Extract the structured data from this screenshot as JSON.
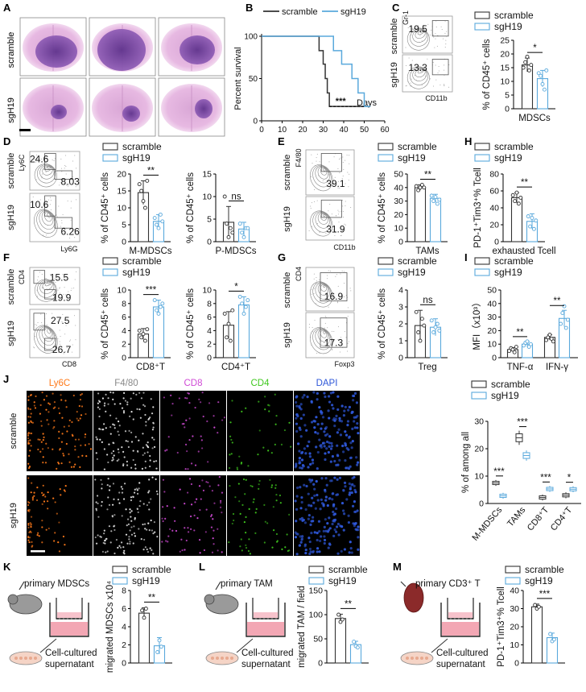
{
  "colors": {
    "scramble": "#333333",
    "sgH19": "#5aa9dc",
    "ly6c": "#ff7a1a",
    "f480": "#e8e8e8",
    "cd8": "#d04ad6",
    "cd4": "#3fc81e",
    "dapi": "#2e57d8"
  },
  "groups": [
    "scramble",
    "sgH19"
  ],
  "panels": {
    "A": {
      "letter": "A",
      "rows": [
        "scramble",
        "sgH19"
      ]
    },
    "B": {
      "letter": "B",
      "ylabel": "Percent survival",
      "xlabel": "Days",
      "sig": "***",
      "yticks": [
        "100",
        "50",
        "0"
      ],
      "xticks": [
        "0",
        "10",
        "20",
        "30",
        "40",
        "50",
        "60"
      ]
    },
    "C": {
      "letter": "C",
      "flow_y": "Gr-1",
      "flow_x": "CD11b",
      "gate_values": [
        "19.5",
        "13.3"
      ],
      "ylabel": "% of CD45⁺ cells",
      "xlabel": "MDSCs",
      "sig": "*",
      "yticks": [
        "0",
        "5",
        "10",
        "15",
        "20",
        "25"
      ]
    },
    "D": {
      "letter": "D",
      "flow_y": "Ly6C",
      "flow_x": "Ly6G",
      "gate_values": [
        "24.6",
        "8.03",
        "10.6",
        "6.26"
      ],
      "ylabel": "% of CD45⁺ cells",
      "plot1_x": "M-MDSCs",
      "plot2_x": "P-MDSCs",
      "sig1": "**",
      "sig2": "ns",
      "yticks1": [
        "0",
        "5",
        "10",
        "15",
        "20"
      ],
      "yticks2": [
        "0",
        "5",
        "10",
        "15"
      ]
    },
    "E": {
      "letter": "E",
      "flow_y": "F4/80",
      "flow_x": "CD11b",
      "gate_values": [
        "39.1",
        "31.9"
      ],
      "ylabel": "% of CD45⁺ cells",
      "xlabel": "TAMs",
      "sig": "**",
      "yticks": [
        "0",
        "10",
        "20",
        "30",
        "40",
        "50"
      ]
    },
    "H": {
      "letter": "H",
      "ylabel": "PD-1⁺Tim3⁺% Tcell",
      "xlabel": "exhausted Tcell",
      "sig": "**",
      "yticks": [
        "0",
        "20",
        "40",
        "60",
        "80"
      ]
    },
    "F": {
      "letter": "F",
      "flow_y": "CD4",
      "flow_x": "CD8",
      "gate_values": [
        "15.5",
        "19.9",
        "27.5",
        "26.7"
      ],
      "ylabel": "% of CD45⁺ cells",
      "plot1_x": "CD8⁺T",
      "plot2_x": "CD4⁺T",
      "sig1": "***",
      "sig2": "*",
      "yticks1": [
        "0",
        "2",
        "4",
        "6",
        "8",
        "10"
      ],
      "yticks2": [
        "0",
        "2",
        "4",
        "6",
        "8",
        "10"
      ]
    },
    "G": {
      "letter": "G",
      "flow_y": "CD4",
      "flow_x": "Foxp3",
      "gate_values": [
        "16.9",
        "17.3"
      ],
      "ylabel": "% of CD45⁺ cells",
      "xlabel": "Treg",
      "sig": "ns",
      "yticks": [
        "0",
        "1",
        "2",
        "3",
        "4"
      ]
    },
    "I": {
      "letter": "I",
      "ylabel": "MFI（x10³）",
      "cats": [
        "TNF-α",
        "IFN-γ"
      ],
      "sig1": "**",
      "sig2": "**",
      "yticks": [
        "0",
        "10",
        "20",
        "30",
        "40",
        "50"
      ]
    },
    "J": {
      "letter": "J",
      "channels": [
        "Ly6C",
        "F4/80",
        "CD8",
        "CD4",
        "DAPI"
      ],
      "ylabel": "% of among all",
      "cats": [
        "M-MDSCs",
        "TAMs",
        "CD8⁺T",
        "CD4⁺T"
      ],
      "sigs": [
        "***",
        "***",
        "***",
        "*"
      ],
      "yticks": [
        "0",
        "10",
        "20",
        "30"
      ]
    },
    "K": {
      "letter": "K",
      "schematic_top": "primary MDSCs",
      "schematic_bottom1": "Cell-cultured",
      "schematic_bottom2": "supernatant",
      "ylabel": "migrated MDSCs x10⁴",
      "sig": "**",
      "yticks": [
        "0",
        "2",
        "4",
        "6",
        "8"
      ]
    },
    "L": {
      "letter": "L",
      "schematic_top": "primary TAM",
      "schematic_bottom1": "Cell-cultured",
      "schematic_bottom2": "supernatant",
      "ylabel": "migrated TAM / field",
      "sig": "**",
      "yticks": [
        "0",
        "50",
        "100",
        "150"
      ]
    },
    "M": {
      "letter": "M",
      "schematic_top": "primary CD3⁺ T",
      "schematic_bottom1": "Cell-cultured",
      "schematic_bottom2": "supernatant",
      "ylabel": "PD-1⁺Tim3⁺% Tcell",
      "sig": "***",
      "yticks": [
        "0",
        "10",
        "20",
        "30",
        "40"
      ]
    }
  },
  "chart_data": [
    {
      "panel": "B",
      "type": "line",
      "xlabel": "Days",
      "ylabel": "Percent survival",
      "xlim": [
        0,
        60
      ],
      "ylim": [
        0,
        100
      ],
      "series": [
        {
          "name": "scramble",
          "x": [
            0,
            28,
            28,
            30,
            30,
            31,
            31,
            32,
            32,
            33,
            33,
            53
          ],
          "y": [
            100,
            100,
            83,
            83,
            67,
            67,
            50,
            50,
            33,
            33,
            17,
            17
          ]
        },
        {
          "name": "sgH19",
          "x": [
            0,
            35,
            35,
            39,
            39,
            44,
            44,
            47,
            47,
            50,
            50,
            53
          ],
          "y": [
            100,
            100,
            83,
            83,
            67,
            67,
            50,
            50,
            33,
            33,
            17,
            17
          ]
        }
      ]
    },
    {
      "panel": "C",
      "type": "bar",
      "categories": [
        "scramble",
        "sgH19"
      ],
      "values": [
        16,
        11
      ],
      "errors": [
        2.5,
        3
      ],
      "ylim": [
        0,
        25
      ],
      "points": [
        [
          15,
          17,
          19,
          14,
          16
        ],
        [
          13,
          12,
          9,
          7,
          14
        ]
      ]
    },
    {
      "panel": "D-M-MDSCs",
      "type": "bar",
      "categories": [
        "scramble",
        "sgH19"
      ],
      "values": [
        14.5,
        6
      ],
      "errors": [
        3.5,
        2
      ],
      "ylim": [
        0,
        20
      ],
      "points": [
        [
          17,
          15,
          12,
          10,
          18
        ],
        [
          7,
          5,
          4,
          8,
          6
        ]
      ]
    },
    {
      "panel": "D-P-MDSCs",
      "type": "bar",
      "categories": [
        "scramble",
        "sgH19"
      ],
      "values": [
        4.3,
        2.8
      ],
      "errors": [
        3.5,
        1.5
      ],
      "ylim": [
        0,
        15
      ],
      "points": [
        [
          10,
          4,
          1,
          3,
          2
        ],
        [
          4,
          2,
          1,
          3,
          3
        ]
      ]
    },
    {
      "panel": "E",
      "type": "bar",
      "categories": [
        "scramble",
        "sgH19"
      ],
      "values": [
        40,
        32
      ],
      "errors": [
        2,
        3
      ],
      "ylim": [
        0,
        50
      ],
      "points": [
        [
          41,
          38,
          40,
          42,
          40
        ],
        [
          34,
          30,
          33,
          28,
          31
        ]
      ]
    },
    {
      "panel": "H",
      "type": "bar",
      "categories": [
        "scramble",
        "sgH19"
      ],
      "values": [
        52,
        24
      ],
      "errors": [
        6,
        9
      ],
      "ylim": [
        0,
        80
      ],
      "points": [
        [
          55,
          48,
          58,
          45,
          52
        ],
        [
          30,
          18,
          28,
          15,
          25
        ]
      ]
    },
    {
      "panel": "F-CD8T",
      "type": "bar",
      "categories": [
        "scramble",
        "sgH19"
      ],
      "values": [
        3.5,
        7.5
      ],
      "errors": [
        0.8,
        1
      ],
      "ylim": [
        0,
        10
      ],
      "points": [
        [
          4,
          3,
          3.5,
          2.5,
          4.2
        ],
        [
          8.5,
          7,
          6.5,
          7.5,
          8
        ]
      ]
    },
    {
      "panel": "F-CD4T",
      "type": "bar",
      "categories": [
        "scramble",
        "sgH19"
      ],
      "values": [
        4.8,
        7.8
      ],
      "errors": [
        2,
        1.2
      ],
      "ylim": [
        0,
        10
      ],
      "points": [
        [
          6.5,
          3,
          5,
          2.5,
          7
        ],
        [
          9,
          8,
          6.5,
          7.5,
          8.5
        ]
      ]
    },
    {
      "panel": "G",
      "type": "bar",
      "categories": [
        "scramble",
        "sgH19"
      ],
      "values": [
        1.9,
        1.8
      ],
      "errors": [
        0.9,
        0.5
      ],
      "ylim": [
        0,
        4
      ],
      "points": [
        [
          2.7,
          1.5,
          1,
          2.3,
          1.9
        ],
        [
          2.2,
          1.5,
          1.8,
          2,
          1.6
        ]
      ]
    },
    {
      "panel": "I",
      "type": "bar",
      "categories": [
        "TNF-α",
        "IFN-γ"
      ],
      "ylim": [
        0,
        50
      ],
      "series": [
        {
          "name": "scramble",
          "values": [
            6,
            15
          ],
          "errors": [
            1.5,
            2
          ],
          "points": [
            [
              5,
              7,
              6,
              4,
              8
            ],
            [
              13,
              15,
              17,
              14,
              12
            ]
          ]
        },
        {
          "name": "sgH19",
          "values": [
            10,
            29
          ],
          "errors": [
            2,
            6
          ],
          "points": [
            [
              9,
              11,
              12,
              8,
              10
            ],
            [
              25,
              33,
              38,
              22,
              28
            ]
          ]
        }
      ]
    },
    {
      "panel": "J",
      "type": "box",
      "categories": [
        "M-MDSCs",
        "TAMs",
        "CD8⁺T",
        "CD4⁺T"
      ],
      "ylim": [
        0,
        30
      ],
      "series": [
        {
          "name": "scramble",
          "values": [
            7.5,
            24,
            2.2,
            3
          ]
        },
        {
          "name": "sgH19",
          "values": [
            2.8,
            17.5,
            5.3,
            5.2
          ]
        }
      ]
    },
    {
      "panel": "K",
      "type": "bar",
      "categories": [
        "scramble",
        "sgH19"
      ],
      "values": [
        5.5,
        1.9
      ],
      "errors": [
        0.6,
        0.9
      ],
      "ylim": [
        0,
        8
      ],
      "points": [
        [
          5.8,
          5,
          6
        ],
        [
          1.2,
          2.5,
          1.8
        ]
      ]
    },
    {
      "panel": "L",
      "type": "bar",
      "categories": [
        "scramble",
        "sgH19"
      ],
      "values": [
        92,
        38
      ],
      "errors": [
        9,
        7
      ],
      "ylim": [
        0,
        150
      ],
      "points": [
        [
          100,
          85,
          90
        ],
        [
          44,
          35,
          32
        ]
      ]
    },
    {
      "panel": "M",
      "type": "bar",
      "categories": [
        "scramble",
        "sgH19"
      ],
      "values": [
        31,
        14
      ],
      "errors": [
        1.5,
        2.5
      ],
      "ylim": [
        0,
        40
      ],
      "points": [
        [
          32,
          30,
          31
        ],
        [
          16,
          12,
          13
        ]
      ]
    }
  ]
}
